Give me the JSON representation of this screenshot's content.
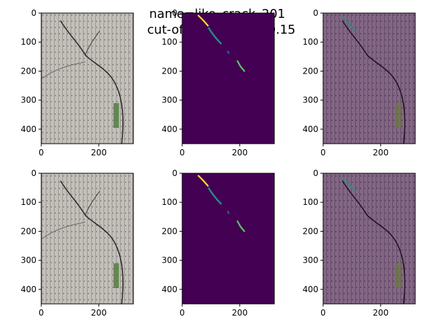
{
  "figure": {
    "title_line1": "name=like_crack_201",
    "title_line2": "cut-off threshold = 0.15"
  },
  "axes": {
    "x_ticks": [
      "0",
      "200"
    ],
    "y_ticks": [
      "0",
      "100",
      "200",
      "300",
      "400"
    ]
  },
  "panels": [
    {
      "row": 0,
      "col": 0,
      "kind": "crack-photo"
    },
    {
      "row": 0,
      "col": 1,
      "kind": "prediction-mask"
    },
    {
      "row": 0,
      "col": 2,
      "kind": "photo-with-overlay"
    },
    {
      "row": 1,
      "col": 0,
      "kind": "crack-photo"
    },
    {
      "row": 1,
      "col": 1,
      "kind": "threshold-mask"
    },
    {
      "row": 1,
      "col": 2,
      "kind": "photo-with-overlay"
    }
  ],
  "colors": {
    "photo_bg": "#c9c6c0",
    "mask_bg": "#440154",
    "mask_fg": "#21918c",
    "mask_hi": "#fde725",
    "overlay": "#7b5a7c"
  }
}
